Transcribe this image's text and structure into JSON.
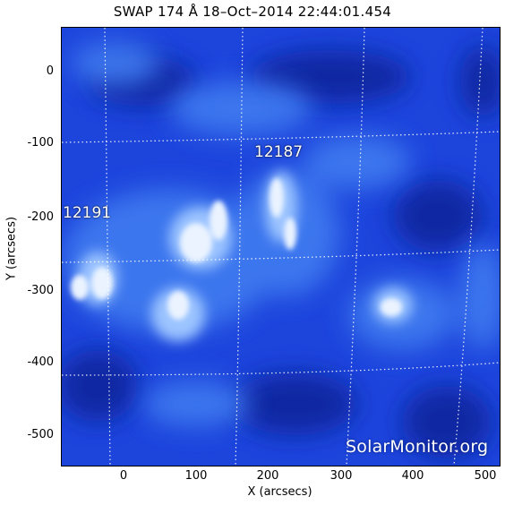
{
  "title": "SWAP 174 Å 18–Oct–2014 22:44:01.454",
  "x_axis": {
    "label": "X (arcsecs)",
    "ticks": [
      "0",
      "100",
      "200",
      "300",
      "400",
      "500"
    ]
  },
  "y_axis": {
    "label": "Y (arcsecs)",
    "ticks": [
      "0",
      "-100",
      "-200",
      "-300",
      "-400",
      "-500"
    ]
  },
  "active_regions": [
    {
      "id": "12187"
    },
    {
      "id": "12191"
    }
  ],
  "watermark": "SolarMonitor.org",
  "colors": {
    "background_blue": "#1a3fd6",
    "dark_blue": "#0a1f8f",
    "bright": "#e8f2ff"
  }
}
